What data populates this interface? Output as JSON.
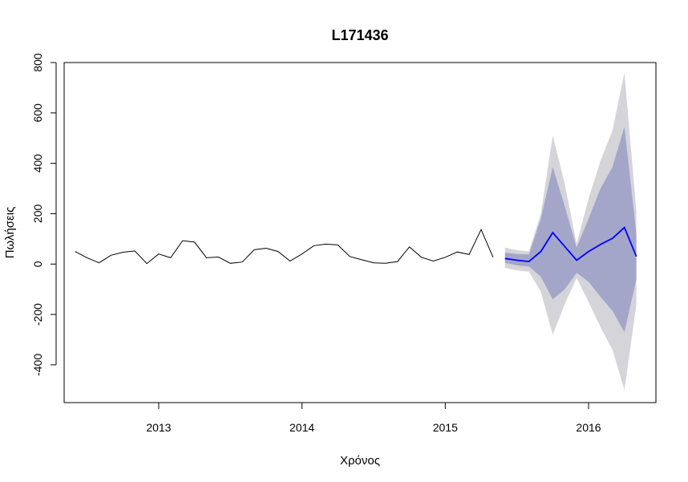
{
  "chart_data": {
    "type": "line",
    "title": "L171436",
    "xlabel": "Χρόνος",
    "ylabel": "Πωλήσεις",
    "xlim": [
      2012.34,
      2016.47
    ],
    "ylim": [
      -550,
      800
    ],
    "x_ticks": [
      2013,
      2014,
      2015,
      2016
    ],
    "x_tick_labels": [
      "2013",
      "2014",
      "2015",
      "2016"
    ],
    "y_ticks": [
      -400,
      -200,
      0,
      200,
      400,
      600,
      800
    ],
    "y_tick_labels": [
      "-400",
      "-200",
      "0",
      "200",
      "400",
      "600",
      "800"
    ],
    "grid": false,
    "legend": "none",
    "colors": {
      "observed": "#000000",
      "forecast": "#0000ff",
      "interval_80": "#a3a6c9",
      "interval_95": "#d4d4d9"
    },
    "series": [
      {
        "role": "observed",
        "x": [
          2012.4167,
          2012.5,
          2012.5833,
          2012.6667,
          2012.75,
          2012.8333,
          2012.9167,
          2013.0,
          2013.0833,
          2013.1667,
          2013.25,
          2013.3333,
          2013.4167,
          2013.5,
          2013.5833,
          2013.6667,
          2013.75,
          2013.8333,
          2013.9167,
          2014.0,
          2014.0833,
          2014.1667,
          2014.25,
          2014.3333,
          2014.4167,
          2014.5,
          2014.5833,
          2014.6667,
          2014.75,
          2014.8333,
          2014.9167,
          2015.0,
          2015.0833,
          2015.1667,
          2015.25,
          2015.3333
        ],
        "values": [
          50,
          25,
          5,
          35,
          47,
          52,
          2,
          40,
          25,
          93,
          87,
          25,
          28,
          3,
          8,
          57,
          63,
          50,
          12,
          40,
          73,
          79,
          76,
          30,
          17,
          5,
          3,
          10,
          68,
          27,
          12,
          27,
          48,
          38,
          137,
          27
        ]
      },
      {
        "role": "forecast",
        "x": [
          2015.4167,
          2015.5,
          2015.5833,
          2015.6667,
          2015.75,
          2015.8333,
          2015.9167,
          2016.0,
          2016.0833,
          2016.1667,
          2016.25,
          2016.3333
        ],
        "values": [
          22,
          15,
          10,
          50,
          125,
          70,
          15,
          50,
          78,
          102,
          145,
          30
        ],
        "lo80": [
          5,
          -5,
          -10,
          -50,
          -140,
          -100,
          -35,
          -70,
          -130,
          -185,
          -270,
          -60
        ],
        "hi80": [
          45,
          40,
          38,
          180,
          385,
          230,
          65,
          180,
          300,
          385,
          545,
          120
        ],
        "lo95": [
          -15,
          -25,
          -30,
          -110,
          -280,
          -160,
          -55,
          -150,
          -250,
          -340,
          -500,
          -160
        ],
        "hi95": [
          65,
          55,
          50,
          200,
          510,
          320,
          80,
          260,
          410,
          530,
          760,
          210
        ]
      }
    ]
  }
}
